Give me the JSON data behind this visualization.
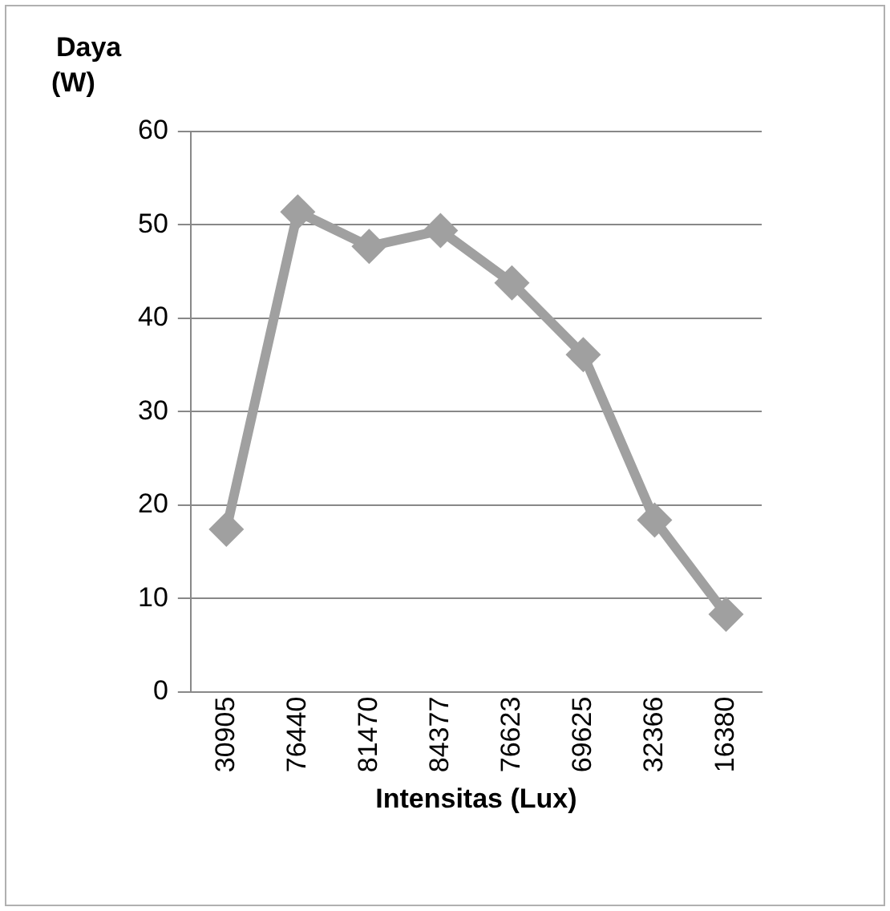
{
  "chart_data": {
    "type": "line",
    "ylabel": "Daya (W)",
    "xlabel": "Intensitas (Lux)",
    "categories": [
      "30905",
      "76440",
      "81470",
      "84377",
      "76623",
      "69625",
      "32366",
      "16380"
    ],
    "series": [
      {
        "color": "#a0a0a0",
        "values": [
          17.4,
          51.4,
          47.7,
          49.4,
          43.8,
          36.1,
          18.4,
          8.3
        ]
      }
    ],
    "ylim": [
      0,
      60
    ],
    "yticks": [
      0,
      10,
      20,
      30,
      40,
      50,
      60
    ],
    "grid": "y",
    "legend": false,
    "marker": "diamond",
    "line_style": "solid"
  }
}
